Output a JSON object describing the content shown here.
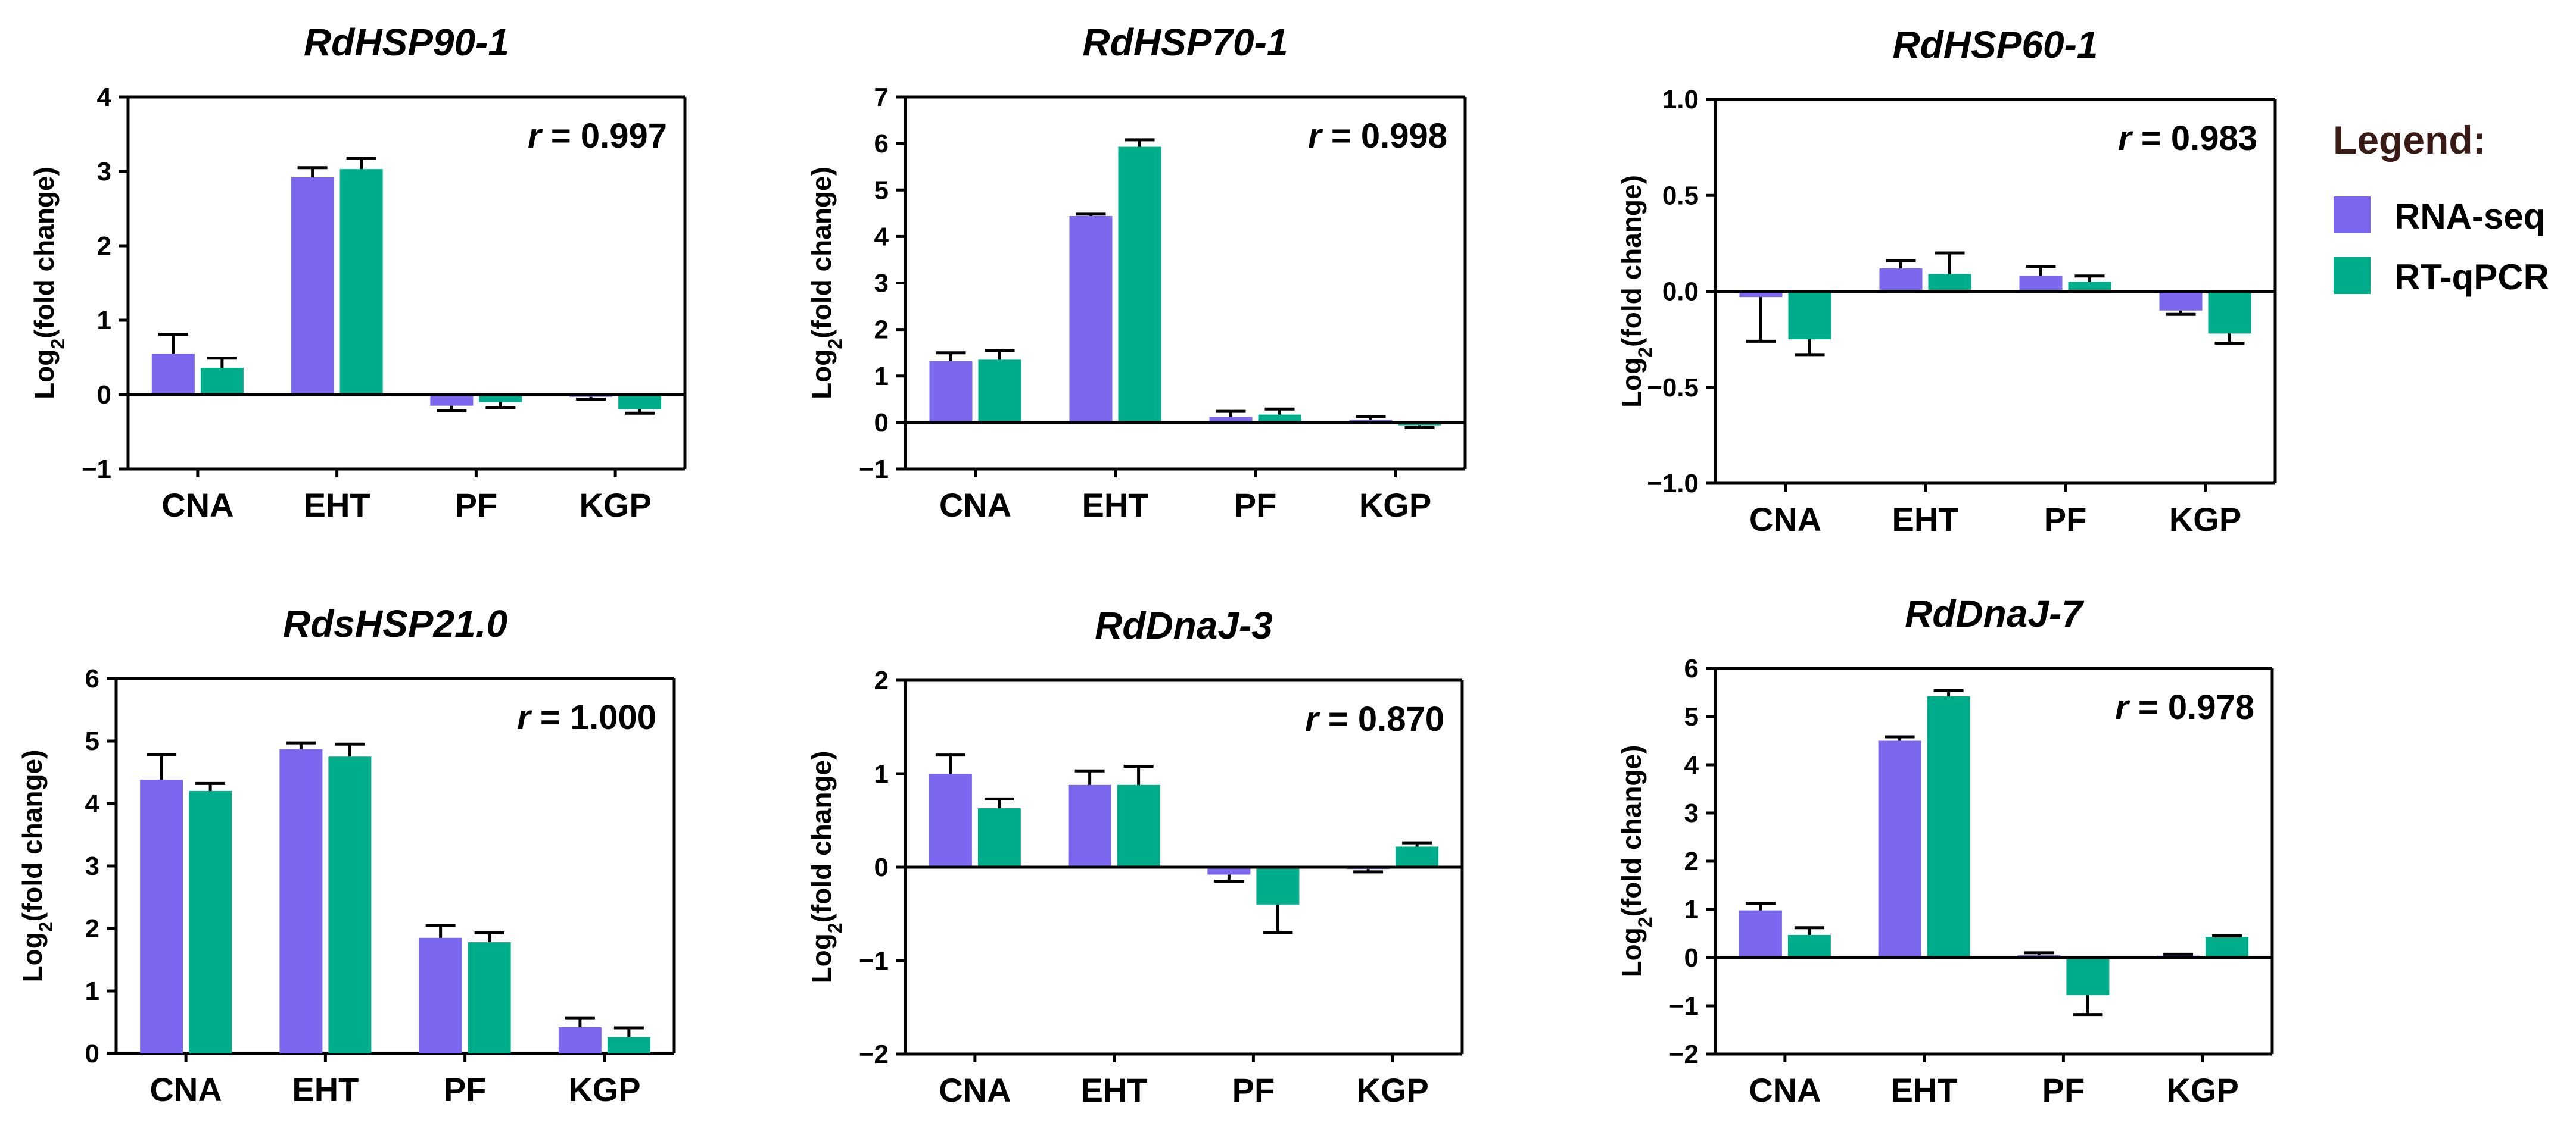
{
  "colors": {
    "rnaseq": "#7b68ee",
    "rtqpcr": "#00ad8a",
    "axis": "#000000"
  },
  "legend": {
    "title": "Legend:",
    "entries": [
      {
        "label": "RNA-seq",
        "color": "#7b68ee"
      },
      {
        "label": "RT-qPCR",
        "color": "#00ad8a"
      }
    ]
  },
  "chart_data": [
    {
      "type": "bar",
      "title": "RdHSP90-1",
      "r_prefix": "r",
      "r_value": "= 0.997",
      "ylabel": "Log2(fold change)",
      "ylim": [
        -1,
        4
      ],
      "yticks": [
        "-1",
        "0",
        "1",
        "2",
        "3",
        "4"
      ],
      "categories": [
        "CNA",
        "EHT",
        "PF",
        "KGP"
      ],
      "series": [
        {
          "name": "RNA-seq",
          "values": [
            0.55,
            2.92,
            -0.15,
            -0.03
          ],
          "errors": [
            0.26,
            0.13,
            0.07,
            0.03
          ]
        },
        {
          "name": "RT-qPCR",
          "values": [
            0.36,
            3.03,
            -0.1,
            -0.2
          ],
          "errors": [
            0.13,
            0.15,
            0.08,
            0.05
          ]
        }
      ]
    },
    {
      "type": "bar",
      "title": "RdHSP70-1",
      "r_prefix": "r",
      "r_value": "= 0.998",
      "ylabel": "Log2(fold change)",
      "ylim": [
        -1,
        7
      ],
      "yticks": [
        "-1",
        "0",
        "1",
        "2",
        "3",
        "4",
        "5",
        "6",
        "7"
      ],
      "categories": [
        "CNA",
        "EHT",
        "PF",
        "KGP"
      ],
      "series": [
        {
          "name": "RNA-seq",
          "values": [
            1.32,
            4.44,
            0.12,
            0.06
          ],
          "errors": [
            0.18,
            0.04,
            0.12,
            0.07
          ]
        },
        {
          "name": "RT-qPCR",
          "values": [
            1.35,
            5.93,
            0.17,
            -0.06
          ],
          "errors": [
            0.2,
            0.15,
            0.12,
            0.05
          ]
        }
      ]
    },
    {
      "type": "bar",
      "title": "RdHSP60-1",
      "r_prefix": "r",
      "r_value": "= 0.983",
      "ylabel": "Log2(fold change)",
      "ylim": [
        -1,
        1
      ],
      "yticks": [
        "-1.0",
        "-0.5",
        "0.0",
        "0.5",
        "1.0"
      ],
      "categories": [
        "CNA",
        "EHT",
        "PF",
        "KGP"
      ],
      "series": [
        {
          "name": "RNA-seq",
          "values": [
            -0.03,
            0.12,
            0.08,
            -0.1
          ],
          "errors": [
            0.23,
            0.04,
            0.05,
            0.02
          ]
        },
        {
          "name": "RT-qPCR",
          "values": [
            -0.25,
            0.09,
            0.05,
            -0.22
          ],
          "errors": [
            0.08,
            0.11,
            0.03,
            0.05
          ]
        }
      ]
    },
    {
      "type": "bar",
      "title": "RdsHSP21.0",
      "r_prefix": "r",
      "r_value": "= 1.000",
      "ylabel": "Log2(fold change)",
      "ylim": [
        0,
        6
      ],
      "yticks": [
        "0",
        "1",
        "2",
        "3",
        "4",
        "5",
        "6"
      ],
      "categories": [
        "CNA",
        "EHT",
        "PF",
        "KGP"
      ],
      "series": [
        {
          "name": "RNA-seq",
          "values": [
            4.38,
            4.87,
            1.85,
            0.42
          ],
          "errors": [
            0.4,
            0.1,
            0.2,
            0.15
          ]
        },
        {
          "name": "RT-qPCR",
          "values": [
            4.2,
            4.75,
            1.78,
            0.26
          ],
          "errors": [
            0.12,
            0.2,
            0.15,
            0.15
          ]
        }
      ]
    },
    {
      "type": "bar",
      "title": "RdDnaJ-3",
      "r_prefix": "r",
      "r_value": "= 0.870",
      "ylabel": "Log2(fold change)",
      "ylim": [
        -2,
        2
      ],
      "yticks": [
        "-2",
        "-1",
        "0",
        "1",
        "2"
      ],
      "categories": [
        "CNA",
        "EHT",
        "PF",
        "KGP"
      ],
      "series": [
        {
          "name": "RNA-seq",
          "values": [
            1.0,
            0.88,
            -0.08,
            -0.02
          ],
          "errors": [
            0.2,
            0.15,
            0.07,
            0.03
          ]
        },
        {
          "name": "RT-qPCR",
          "values": [
            0.63,
            0.88,
            -0.4,
            0.22
          ],
          "errors": [
            0.1,
            0.2,
            0.3,
            0.04
          ]
        }
      ]
    },
    {
      "type": "bar",
      "title": "RdDnaJ-7",
      "r_prefix": "r",
      "r_value": "= 0.978",
      "ylabel": "Log2(fold change)",
      "ylim": [
        -2,
        6
      ],
      "yticks": [
        "-2",
        "-1",
        "0",
        "1",
        "2",
        "3",
        "4",
        "5",
        "6"
      ],
      "categories": [
        "CNA",
        "EHT",
        "PF",
        "KGP"
      ],
      "series": [
        {
          "name": "RNA-seq",
          "values": [
            0.98,
            4.5,
            0.05,
            0.04
          ],
          "errors": [
            0.15,
            0.08,
            0.05,
            0.03
          ]
        },
        {
          "name": "RT-qPCR",
          "values": [
            0.47,
            5.42,
            -0.78,
            0.43
          ],
          "errors": [
            0.15,
            0.12,
            0.4,
            0.02
          ]
        }
      ]
    }
  ]
}
